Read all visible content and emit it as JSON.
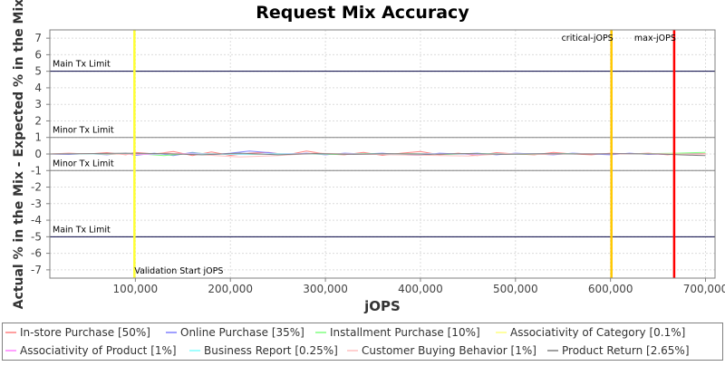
{
  "chart_data": {
    "type": "line",
    "title": "Request Mix Accuracy",
    "xlabel": "jOPS",
    "ylabel": "Actual % in the Mix - Expected % in the Mix",
    "xlim": [
      10000,
      710000
    ],
    "ylim": [
      -7.5,
      7.5
    ],
    "x_ticks": [
      100000,
      200000,
      300000,
      400000,
      500000,
      600000,
      700000
    ],
    "x_tick_labels": [
      "100,000",
      "200,000",
      "300,000",
      "400,000",
      "500,000",
      "600,000",
      "700,000"
    ],
    "y_ticks": [
      -7,
      -6,
      -5,
      -4,
      -3,
      -2,
      -1,
      0,
      1,
      2,
      3,
      4,
      5,
      6,
      7
    ],
    "y_tick_labels": [
      "-7",
      "-6",
      "-5",
      "-4",
      "-3",
      "-2",
      "-1",
      "0",
      "1",
      "2",
      "3",
      "4",
      "5",
      "6",
      "7"
    ],
    "grid": true,
    "legend_position": "bottom",
    "horizontal_markers": [
      {
        "label": "Main Tx Limit",
        "y": 5,
        "color": "#000040"
      },
      {
        "label": "Minor Tx Limit",
        "y": 1,
        "color": "#808080"
      },
      {
        "label": "Minor Tx Limit",
        "y": -1,
        "color": "#808080"
      },
      {
        "label": "Main Tx Limit",
        "y": -5,
        "color": "#000040"
      }
    ],
    "vertical_markers": [
      {
        "label": "Validation Start jOPS",
        "x": 99000,
        "color": "#ffff33",
        "label_position": "bottom"
      },
      {
        "label": "critical-jOPS",
        "x": 601000,
        "color": "#ffc800",
        "label_position": "top"
      },
      {
        "label": "max-jOPS",
        "x": 667000,
        "color": "#ff0000",
        "label_position": "top"
      }
    ],
    "series": [
      {
        "name": "In-store Purchase [50%]",
        "color": "#ff8080",
        "x": [
          10000,
          30000,
          50000,
          70000,
          90000,
          100000,
          120000,
          140000,
          160000,
          180000,
          200000,
          220000,
          240000,
          260000,
          280000,
          300000,
          320000,
          340000,
          360000,
          380000,
          400000,
          420000,
          440000,
          460000,
          480000,
          500000,
          520000,
          540000,
          560000,
          580000,
          600000,
          620000,
          640000,
          660000,
          680000,
          700000
        ],
        "values": [
          0,
          0.05,
          0,
          0.08,
          -0.05,
          0.1,
          0,
          0.15,
          -0.1,
          0.12,
          -0.08,
          0.05,
          0.1,
          -0.05,
          0.18,
          0,
          -0.05,
          0.1,
          -0.08,
          0.05,
          0.15,
          -0.05,
          0.05,
          -0.1,
          0.08,
          0,
          -0.05,
          0.1,
          0,
          -0.05,
          0.05,
          0,
          0.05,
          -0.05,
          0.05,
          0.02
        ]
      },
      {
        "name": "Online Purchase [35%]",
        "color": "#8080ff",
        "x": [
          10000,
          30000,
          50000,
          70000,
          90000,
          100000,
          120000,
          140000,
          160000,
          180000,
          200000,
          220000,
          240000,
          260000,
          280000,
          300000,
          320000,
          340000,
          360000,
          380000,
          400000,
          420000,
          440000,
          460000,
          480000,
          500000,
          520000,
          540000,
          560000,
          580000,
          600000,
          620000,
          640000,
          660000,
          680000,
          700000
        ],
        "values": [
          0,
          -0.03,
          0.02,
          -0.05,
          0.05,
          -0.08,
          0.05,
          -0.1,
          0.1,
          -0.05,
          0.05,
          0.18,
          0.08,
          -0.05,
          0.05,
          -0.05,
          0.05,
          0,
          0.05,
          -0.05,
          -0.08,
          0.05,
          0,
          0.05,
          -0.05,
          0.05,
          0,
          -0.05,
          0.05,
          0,
          -0.05,
          0.05,
          -0.03,
          0.03,
          -0.02,
          0
        ]
      },
      {
        "name": "Installment Purchase [10%]",
        "color": "#80ff80",
        "x": [
          10000,
          40000,
          70000,
          100000,
          130000,
          160000,
          190000,
          220000,
          250000,
          280000,
          310000,
          340000,
          370000,
          400000,
          430000,
          460000,
          490000,
          520000,
          550000,
          580000,
          610000,
          640000,
          670000,
          700000
        ],
        "values": [
          0,
          0.02,
          -0.02,
          0.03,
          -0.1,
          0.05,
          0,
          -0.03,
          0.02,
          0,
          -0.03,
          0.02,
          0,
          0.03,
          -0.02,
          0.02,
          0,
          -0.02,
          0.02,
          0,
          0,
          0.02,
          0.05,
          0.1
        ]
      },
      {
        "name": "Associativity of Category [0.1%]",
        "color": "#ffff80",
        "x": [
          10000,
          100000,
          200000,
          300000,
          400000,
          500000,
          600000,
          700000
        ],
        "values": [
          0,
          0,
          0,
          0,
          0,
          0,
          0,
          0
        ]
      },
      {
        "name": "Associativity of Product [1%]",
        "color": "#ff80ff",
        "x": [
          10000,
          60000,
          110000,
          160000,
          210000,
          260000,
          310000,
          360000,
          410000,
          460000,
          510000,
          560000,
          610000,
          660000,
          700000
        ],
        "values": [
          0,
          0.02,
          -0.03,
          0.03,
          -0.02,
          0.02,
          0,
          -0.02,
          0.02,
          -0.02,
          0.02,
          0,
          0.02,
          -0.02,
          0
        ]
      },
      {
        "name": "Business Report [0.25%]",
        "color": "#80ffff",
        "x": [
          10000,
          100000,
          200000,
          300000,
          400000,
          500000,
          600000,
          700000
        ],
        "values": [
          0,
          0.01,
          -0.01,
          0.01,
          0,
          0.01,
          0,
          0
        ]
      },
      {
        "name": "Customer Buying Behavior [1%]",
        "color": "#ffc0c0",
        "x": [
          10000,
          50000,
          90000,
          130000,
          170000,
          210000,
          250000,
          290000,
          330000,
          370000,
          410000,
          450000,
          490000,
          530000,
          570000,
          610000,
          650000,
          690000,
          700000
        ],
        "values": [
          0,
          0.03,
          -0.02,
          0.05,
          -0.05,
          -0.18,
          -0.1,
          0.05,
          0,
          -0.05,
          -0.08,
          -0.12,
          0.02,
          -0.03,
          0.02,
          0,
          0.02,
          -0.02,
          0
        ]
      },
      {
        "name": "Product Return [2.65%]",
        "color": "#808080",
        "x": [
          10000,
          50000,
          90000,
          130000,
          170000,
          210000,
          250000,
          290000,
          330000,
          370000,
          410000,
          450000,
          490000,
          530000,
          570000,
          610000,
          650000,
          690000,
          700000
        ],
        "values": [
          0,
          0.02,
          0.05,
          0.02,
          -0.05,
          0.05,
          -0.05,
          0.03,
          -0.02,
          0.02,
          -0.02,
          0.03,
          -0.02,
          0.02,
          0,
          0.02,
          0,
          -0.08,
          -0.1
        ]
      }
    ]
  }
}
